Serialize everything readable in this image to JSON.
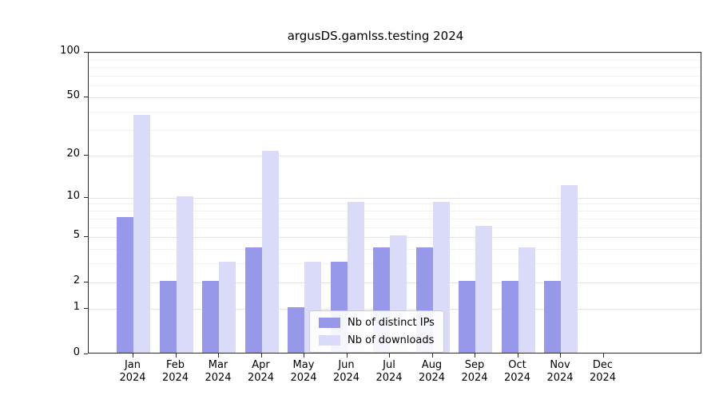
{
  "chart_data": {
    "type": "bar",
    "title": "argusDS.gamlss.testing 2024",
    "scale": "log1p",
    "categories": [
      "Jan",
      "Feb",
      "Mar",
      "Apr",
      "May",
      "Jun",
      "Jul",
      "Aug",
      "Sep",
      "Oct",
      "Nov",
      "Dec"
    ],
    "x_tick_year": "2024",
    "series": [
      {
        "name": "Nb of distinct IPs",
        "color": "#9798ea",
        "values": [
          7,
          2,
          2,
          4,
          1,
          3,
          4,
          4,
          2,
          2,
          2,
          0
        ]
      },
      {
        "name": "Nb of downloads",
        "color": "#dadbf8",
        "values": [
          37,
          10,
          3,
          21,
          3,
          9,
          5,
          9,
          6,
          4,
          12,
          0
        ]
      }
    ],
    "yticks": [
      0,
      1,
      2,
      5,
      10,
      20,
      50,
      100
    ],
    "minor_gridlines": [
      3,
      4,
      6,
      7,
      8,
      9,
      30,
      40,
      60,
      70,
      80,
      90
    ],
    "ylim": [
      0,
      100
    ],
    "xlabel": "",
    "ylabel": "",
    "grid": "horizontal",
    "legend_position": "bottom-center"
  }
}
